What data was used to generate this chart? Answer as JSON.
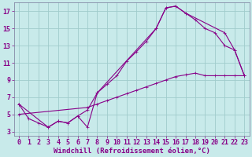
{
  "bg_color": "#c8eaea",
  "grid_color": "#a0cccc",
  "line_color": "#880088",
  "xlabel": "Windchill (Refroidissement éolien,°C)",
  "xlabel_fontsize": 6.5,
  "tick_fontsize": 6.0,
  "xlim": [
    -0.5,
    23.5
  ],
  "ylim": [
    2.5,
    18.0
  ],
  "yticks": [
    3,
    5,
    7,
    9,
    11,
    13,
    15,
    17
  ],
  "xticks": [
    0,
    1,
    2,
    3,
    4,
    5,
    6,
    7,
    8,
    9,
    10,
    11,
    12,
    13,
    14,
    15,
    16,
    17,
    18,
    19,
    20,
    21,
    22,
    23
  ],
  "line1_x": [
    0,
    1,
    2,
    3,
    4,
    5,
    6,
    7,
    8,
    9,
    10,
    11,
    12,
    13,
    14,
    15,
    16,
    17,
    18,
    19,
    20,
    21,
    22,
    23
  ],
  "line1_y": [
    6.2,
    4.5,
    4.0,
    3.5,
    4.2,
    4.0,
    4.8,
    5.5,
    7.5,
    8.5,
    9.5,
    11.2,
    12.3,
    13.5,
    15.0,
    17.4,
    17.6,
    16.8,
    16.0,
    15.0,
    14.5,
    13.0,
    12.5,
    9.5
  ],
  "line2_x": [
    0,
    3,
    4,
    5,
    6,
    7,
    8,
    14,
    15,
    16,
    17,
    21,
    22,
    23
  ],
  "line2_y": [
    6.2,
    3.5,
    4.2,
    4.0,
    4.8,
    3.5,
    7.5,
    15.0,
    17.4,
    17.6,
    16.8,
    14.5,
    12.5,
    9.5
  ],
  "line3_x": [
    0,
    7,
    8,
    9,
    10,
    11,
    12,
    13,
    14,
    15,
    16,
    17,
    18,
    19,
    20,
    21,
    22,
    23
  ],
  "line3_y": [
    5.0,
    5.8,
    6.2,
    6.6,
    7.0,
    7.4,
    7.8,
    8.2,
    8.6,
    9.0,
    9.4,
    9.6,
    9.8,
    9.5,
    9.5,
    9.5,
    9.5,
    9.5
  ]
}
